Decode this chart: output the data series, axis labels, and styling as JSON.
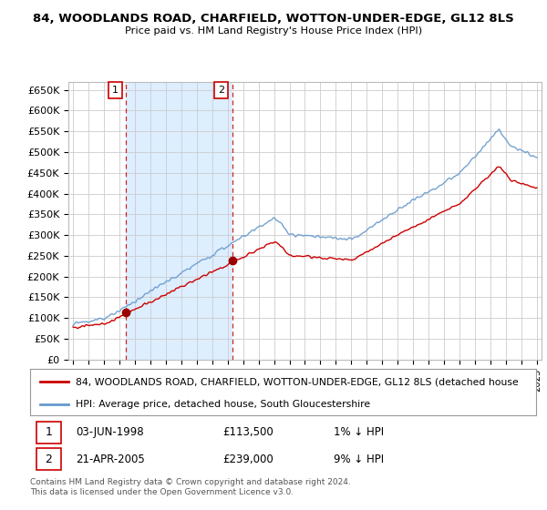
{
  "title": "84, WOODLANDS ROAD, CHARFIELD, WOTTON-UNDER-EDGE, GL12 8LS",
  "subtitle": "Price paid vs. HM Land Registry's House Price Index (HPI)",
  "ylim": [
    0,
    670000
  ],
  "yticks": [
    0,
    50000,
    100000,
    150000,
    200000,
    250000,
    300000,
    350000,
    400000,
    450000,
    500000,
    550000,
    600000,
    650000
  ],
  "ytick_labels": [
    "£0",
    "£50K",
    "£100K",
    "£150K",
    "£200K",
    "£250K",
    "£300K",
    "£350K",
    "£400K",
    "£450K",
    "£500K",
    "£550K",
    "£600K",
    "£650K"
  ],
  "sale1_date": 1998.42,
  "sale1_price": 113500,
  "sale1_label": "1",
  "sale2_date": 2005.3,
  "sale2_price": 239000,
  "sale2_label": "2",
  "line_color_price": "#cc0000",
  "line_color_hpi": "#6699cc",
  "shade_color": "#ddeeff",
  "marker_color": "#990000",
  "grid_color": "#cccccc",
  "background_color": "#ffffff",
  "legend_line1": "84, WOODLANDS ROAD, CHARFIELD, WOTTON-UNDER-EDGE, GL12 8LS (detached house",
  "legend_line2": "HPI: Average price, detached house, South Gloucestershire",
  "footer": "Contains HM Land Registry data © Crown copyright and database right 2024.\nThis data is licensed under the Open Government Licence v3.0.",
  "xlim_start": 1994.7,
  "xlim_end": 2025.3
}
